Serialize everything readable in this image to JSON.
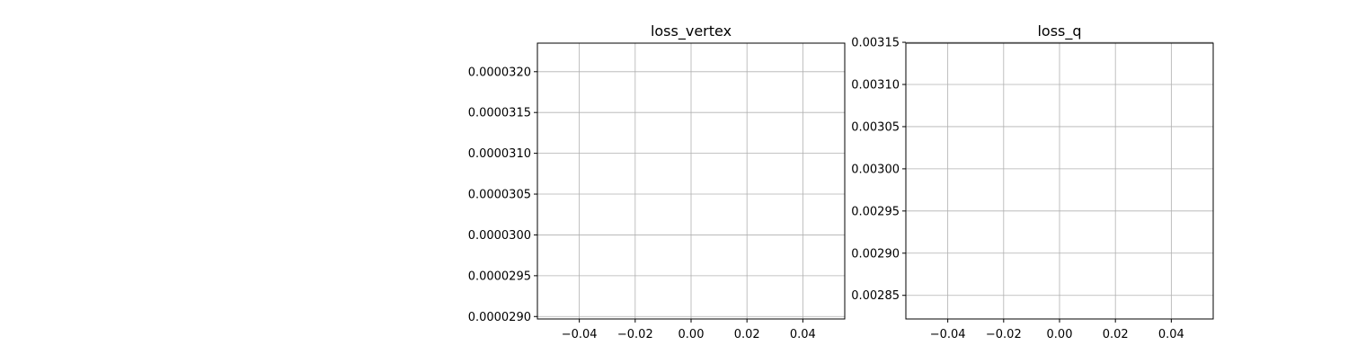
{
  "chart_data": [
    {
      "type": "line",
      "title": "loss_vertex",
      "xlabel": "",
      "ylabel": "",
      "grid": true,
      "xlim": [
        -0.055,
        0.055
      ],
      "ylim": [
        2.897e-05,
        3.235e-05
      ],
      "xticks": [
        -0.04,
        -0.02,
        0.0,
        0.02,
        0.04
      ],
      "xtick_labels": [
        "−0.04",
        "−0.02",
        "0.00",
        "0.02",
        "0.04"
      ],
      "yticks": [
        2.9e-05,
        2.95e-05,
        3e-05,
        3.05e-05,
        3.1e-05,
        3.15e-05,
        3.2e-05
      ],
      "ytick_labels": [
        "0.0000290",
        "0.0000295",
        "0.0000300",
        "0.0000305",
        "0.0000310",
        "0.0000315",
        "0.0000320"
      ],
      "series": []
    },
    {
      "type": "line",
      "title": "loss_q",
      "xlabel": "",
      "ylabel": "",
      "grid": true,
      "xlim": [
        -0.055,
        0.055
      ],
      "ylim": [
        0.002822,
        0.003149
      ],
      "xticks": [
        -0.04,
        -0.02,
        0.0,
        0.02,
        0.04
      ],
      "xtick_labels": [
        "−0.04",
        "−0.02",
        "0.00",
        "0.02",
        "0.04"
      ],
      "yticks": [
        0.00285,
        0.0029,
        0.00295,
        0.003,
        0.00305,
        0.0031,
        0.00315
      ],
      "ytick_labels": [
        "0.00285",
        "0.00290",
        "0.00295",
        "0.00300",
        "0.00305",
        "0.00310",
        "0.00315"
      ],
      "series": []
    }
  ]
}
